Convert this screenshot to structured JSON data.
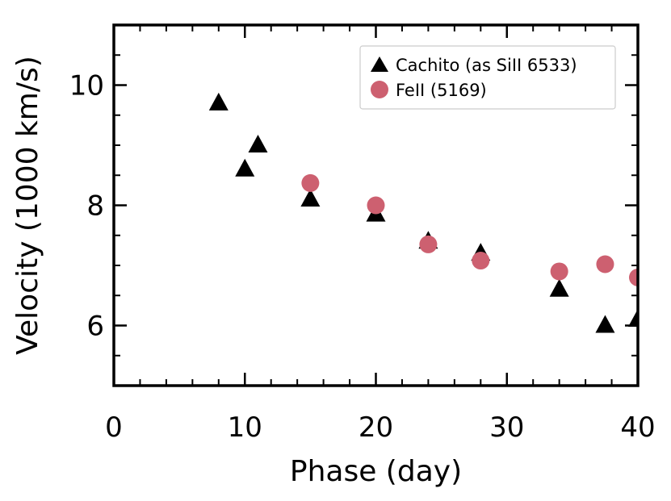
{
  "chart_data": {
    "type": "scatter",
    "xlabel": "Phase (day)",
    "ylabel": "Velocity (1000 km/s)",
    "xlim": [
      0,
      40
    ],
    "ylim": [
      5,
      11
    ],
    "x_ticks": [
      0,
      10,
      20,
      30,
      40
    ],
    "y_ticks": [
      6,
      8,
      10
    ],
    "x_tick_labels": [
      "0",
      "10",
      "20",
      "30",
      "40"
    ],
    "y_tick_labels": [
      "6",
      "8",
      "10"
    ],
    "grid": false,
    "legend_position": "top-right",
    "series": [
      {
        "name": "Cachito (as SiII 6533)",
        "marker": "triangle",
        "color": "#000000",
        "points": [
          {
            "x": 8,
            "y": 9.7
          },
          {
            "x": 10,
            "y": 8.6
          },
          {
            "x": 11,
            "y": 9.0
          },
          {
            "x": 15,
            "y": 8.1
          },
          {
            "x": 20,
            "y": 7.85
          },
          {
            "x": 24,
            "y": 7.4
          },
          {
            "x": 28,
            "y": 7.2
          },
          {
            "x": 34,
            "y": 6.6
          },
          {
            "x": 37.5,
            "y": 6.0
          },
          {
            "x": 40,
            "y": 6.1
          }
        ]
      },
      {
        "name": "FeII (5169)",
        "marker": "circle",
        "color": "#cd6070",
        "points": [
          {
            "x": 15,
            "y": 8.37
          },
          {
            "x": 20,
            "y": 8.0
          },
          {
            "x": 24,
            "y": 7.35
          },
          {
            "x": 28,
            "y": 7.08
          },
          {
            "x": 34,
            "y": 6.9
          },
          {
            "x": 37.5,
            "y": 7.02
          },
          {
            "x": 40,
            "y": 6.8
          }
        ]
      }
    ]
  }
}
